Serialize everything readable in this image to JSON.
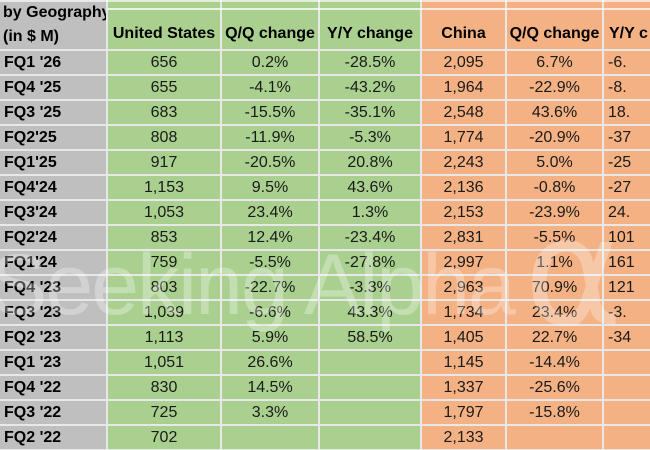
{
  "header": {
    "title_line1": "by Geography",
    "title_line2": "(in $ M)",
    "columns": [
      "United States",
      "Q/Q change",
      "Y/Y change",
      "China",
      "Q/Q change",
      "Y/Y c"
    ]
  },
  "watermark": {
    "text": "Seeking Alpha",
    "symbol": "α"
  },
  "colors": {
    "label_bg": "#bfbfbf",
    "us_bg": "#a9d08e",
    "china_bg": "#f4b183",
    "gridline": "#e8e8e8"
  },
  "table": {
    "rows": [
      {
        "label": "FQ1 '26",
        "us": "656",
        "us_qq": "0.2%",
        "us_yy": "-28.5%",
        "cn": "2,095",
        "cn_qq": "6.7%",
        "cn_yy": "-6."
      },
      {
        "label": "FQ4 '25",
        "us": "655",
        "us_qq": "-4.1%",
        "us_yy": "-43.2%",
        "cn": "1,964",
        "cn_qq": "-22.9%",
        "cn_yy": "-8."
      },
      {
        "label": "FQ3 '25",
        "us": "683",
        "us_qq": "-15.5%",
        "us_yy": "-35.1%",
        "cn": "2,548",
        "cn_qq": "43.6%",
        "cn_yy": "18."
      },
      {
        "label": "FQ2'25",
        "us": "808",
        "us_qq": "-11.9%",
        "us_yy": "-5.3%",
        "cn": "1,774",
        "cn_qq": "-20.9%",
        "cn_yy": "-37"
      },
      {
        "label": "FQ1'25",
        "us": "917",
        "us_qq": "-20.5%",
        "us_yy": "20.8%",
        "cn": "2,243",
        "cn_qq": "5.0%",
        "cn_yy": "-25"
      },
      {
        "label": "FQ4'24",
        "us": "1,153",
        "us_qq": "9.5%",
        "us_yy": "43.6%",
        "cn": "2,136",
        "cn_qq": "-0.8%",
        "cn_yy": "-27"
      },
      {
        "label": "FQ3'24",
        "us": "1,053",
        "us_qq": "23.4%",
        "us_yy": "1.3%",
        "cn": "2,153",
        "cn_qq": "-23.9%",
        "cn_yy": "24."
      },
      {
        "label": "FQ2'24",
        "us": "853",
        "us_qq": "12.4%",
        "us_yy": "-23.4%",
        "cn": "2,831",
        "cn_qq": "-5.5%",
        "cn_yy": "101"
      },
      {
        "label": "FQ1'24",
        "us": "759",
        "us_qq": "-5.5%",
        "us_yy": "-27.8%",
        "cn": "2,997",
        "cn_qq": "1.1%",
        "cn_yy": "161"
      },
      {
        "label": "FQ4 '23",
        "us": "803",
        "us_qq": "-22.7%",
        "us_yy": "-3.3%",
        "cn": "2,963",
        "cn_qq": "70.9%",
        "cn_yy": "121"
      },
      {
        "label": "FQ3 '23",
        "us": "1,039",
        "us_qq": "-6.6%",
        "us_yy": "43.3%",
        "cn": "1,734",
        "cn_qq": "23.4%",
        "cn_yy": "-3."
      },
      {
        "label": "FQ2 '23",
        "us": "1,113",
        "us_qq": "5.9%",
        "us_yy": "58.5%",
        "cn": "1,405",
        "cn_qq": "22.7%",
        "cn_yy": "-34"
      },
      {
        "label": "FQ1 '23",
        "us": "1,051",
        "us_qq": "26.6%",
        "us_yy": "",
        "cn": "1,145",
        "cn_qq": "-14.4%",
        "cn_yy": ""
      },
      {
        "label": "FQ4 '22",
        "us": "830",
        "us_qq": "14.5%",
        "us_yy": "",
        "cn": "1,337",
        "cn_qq": "-25.6%",
        "cn_yy": ""
      },
      {
        "label": "FQ3 '22",
        "us": "725",
        "us_qq": "3.3%",
        "us_yy": "",
        "cn": "1,797",
        "cn_qq": "-15.8%",
        "cn_yy": ""
      },
      {
        "label": "FQ2 '22",
        "us": "702",
        "us_qq": "",
        "us_yy": "",
        "cn": "2,133",
        "cn_qq": "",
        "cn_yy": ""
      }
    ]
  }
}
